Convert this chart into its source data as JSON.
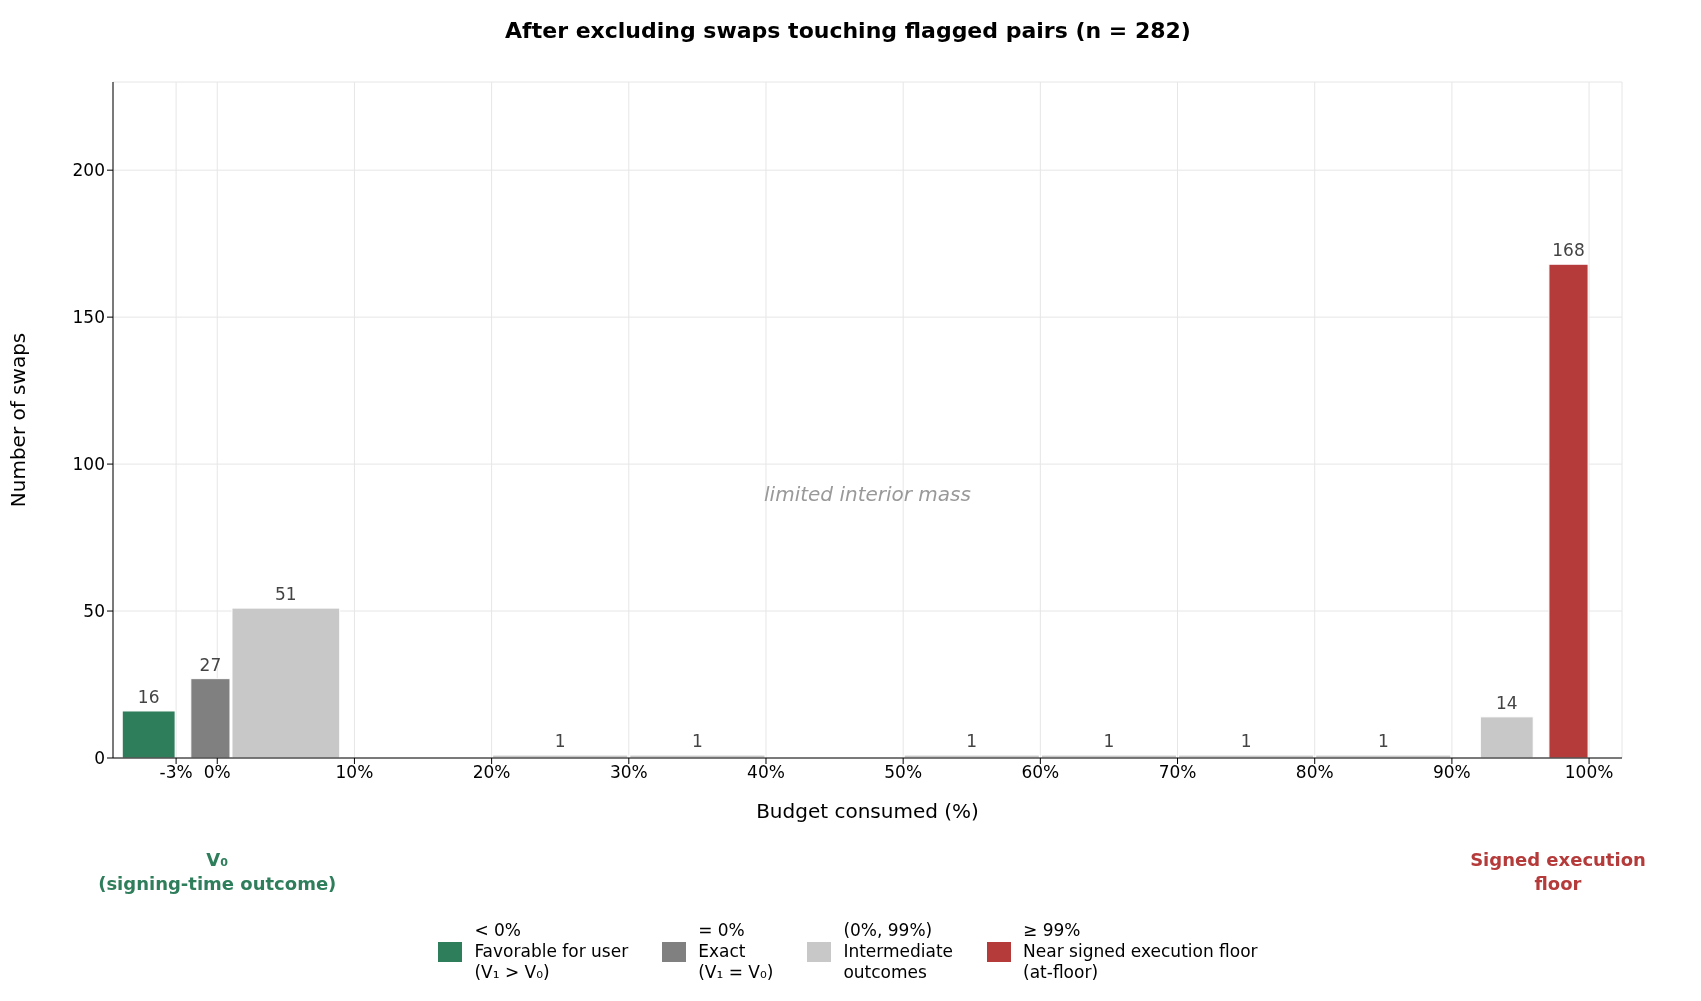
{
  "chart_data": {
    "type": "histogram",
    "title": "After excluding swaps touching flagged pairs (n = 282)",
    "xlabel": "Budget consumed (%)",
    "ylabel": "Number of swaps",
    "bins": [
      -7,
      -3,
      -2,
      1,
      9,
      20,
      30,
      40,
      50,
      60,
      70,
      80,
      90,
      92,
      96,
      97,
      100
    ],
    "series": [
      {
        "name": "< 0%\nFavorable for user\n(V₁ > V₀)",
        "color": "#2e7d5b",
        "values": [
          16,
          null,
          null,
          null,
          null,
          null,
          null,
          null,
          null,
          null,
          null,
          null,
          null,
          null,
          null,
          null
        ]
      },
      {
        "name": "= 0%\nExact\n(V₁ = V₀)",
        "color": "#808080",
        "values": [
          null,
          null,
          27,
          null,
          null,
          null,
          null,
          null,
          null,
          null,
          null,
          null,
          null,
          null,
          null,
          null
        ]
      },
      {
        "name": "(0%, 99%)\nIntermediate\noutcomes",
        "color": "#c8c8c8",
        "values": [
          null,
          null,
          null,
          51,
          null,
          1,
          1,
          null,
          1,
          1,
          1,
          1,
          null,
          14,
          null,
          null
        ]
      },
      {
        "name": "≥ 99%\nNear signed execution floor\n(at-floor)",
        "color": "#b53b3b",
        "values": [
          null,
          null,
          null,
          null,
          null,
          null,
          null,
          null,
          null,
          null,
          null,
          null,
          null,
          null,
          null,
          168
        ]
      }
    ],
    "xlim": [
      -7.6,
      102.4
    ],
    "xticks": [
      {
        "value": -3,
        "label": "-3%"
      },
      {
        "value": 0,
        "label": "0%"
      },
      {
        "value": 10,
        "label": "10%"
      },
      {
        "value": 20,
        "label": "20%"
      },
      {
        "value": 30,
        "label": "30%"
      },
      {
        "value": 40,
        "label": "40%"
      },
      {
        "value": 50,
        "label": "50%"
      },
      {
        "value": 60,
        "label": "60%"
      },
      {
        "value": 70,
        "label": "70%"
      },
      {
        "value": 80,
        "label": "80%"
      },
      {
        "value": 90,
        "label": "90%"
      },
      {
        "value": 100,
        "label": "100%"
      }
    ],
    "ylim": [
      0,
      230
    ],
    "yticks": [
      0,
      50,
      100,
      150,
      200
    ],
    "grid": true,
    "legend": "bottom",
    "data_labels": true,
    "annotations": [
      "limited interior mass",
      "V₀\n(signing-time outcome)",
      "Signed execution\nfloor"
    ]
  }
}
